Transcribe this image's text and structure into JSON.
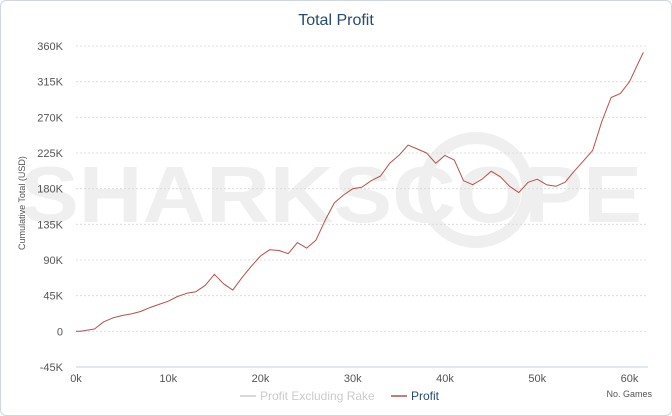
{
  "chart_data": {
    "type": "line",
    "title": "Total Profit",
    "xlabel": "No. Games",
    "ylabel": "Cumulative Total (USD)",
    "xlim": [
      0,
      62000
    ],
    "ylim": [
      -45000,
      360000
    ],
    "x_ticks": [
      0,
      10000,
      20000,
      30000,
      40000,
      50000,
      60000
    ],
    "x_tick_labels": [
      "0k",
      "10k",
      "20k",
      "30k",
      "40k",
      "50k",
      "60k"
    ],
    "y_ticks": [
      -45000,
      0,
      45000,
      90000,
      135000,
      180000,
      225000,
      270000,
      315000,
      360000
    ],
    "y_tick_labels": [
      "-45K",
      "0",
      "45K",
      "90K",
      "135K",
      "180K",
      "225K",
      "270K",
      "315K",
      "360K"
    ],
    "grid": true,
    "legend_position": "bottom-center",
    "watermark": "SHARKSCOPE",
    "colors": {
      "profit": "#b5514b",
      "excluding_rake": "#cccccc",
      "grid": "#dcdcdc",
      "title": "#274b6d",
      "axis_text": "#555555"
    },
    "series": [
      {
        "name": "Profit Excluding Rake",
        "visible": false,
        "x": [],
        "y": []
      },
      {
        "name": "Profit",
        "visible": true,
        "x": [
          0,
          500,
          1000,
          1500,
          2000,
          3000,
          4000,
          5000,
          6000,
          7000,
          8000,
          9000,
          10000,
          11000,
          12000,
          13000,
          14000,
          15000,
          16000,
          17000,
          18000,
          19000,
          20000,
          21000,
          22000,
          23000,
          24000,
          25000,
          26000,
          27000,
          28000,
          29000,
          30000,
          31000,
          32000,
          33000,
          34000,
          35000,
          36000,
          37000,
          38000,
          39000,
          40000,
          41000,
          42000,
          43000,
          44000,
          45000,
          46000,
          47000,
          48000,
          49000,
          50000,
          51000,
          52000,
          53000,
          54000,
          55000,
          56000,
          57000,
          58000,
          59000,
          60000,
          61000,
          61500
        ],
        "y": [
          0,
          0,
          1000,
          2000,
          3000,
          12000,
          17000,
          20000,
          22000,
          25000,
          30000,
          34000,
          38000,
          44000,
          48000,
          50000,
          58000,
          72000,
          60000,
          52000,
          68000,
          82000,
          95000,
          103000,
          102000,
          98000,
          112000,
          105000,
          115000,
          140000,
          162000,
          172000,
          180000,
          182000,
          190000,
          196000,
          212000,
          222000,
          235000,
          230000,
          225000,
          212000,
          222000,
          216000,
          190000,
          185000,
          192000,
          202000,
          195000,
          183000,
          175000,
          188000,
          192000,
          185000,
          183000,
          188000,
          202000,
          215000,
          228000,
          265000,
          295000,
          300000,
          315000,
          340000,
          352000
        ]
      }
    ]
  }
}
